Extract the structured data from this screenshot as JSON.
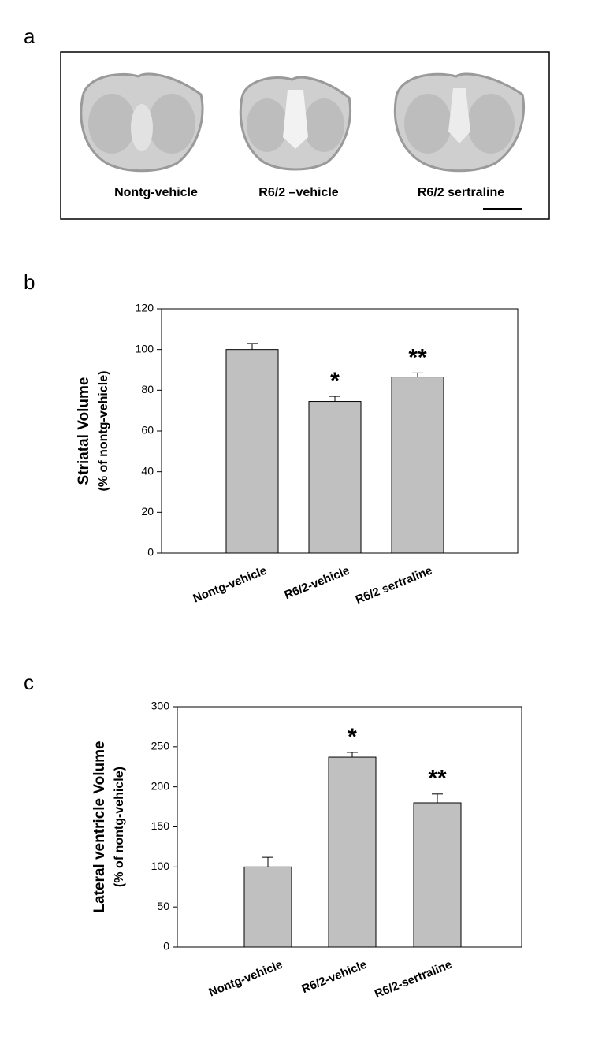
{
  "panel_a": {
    "label": "a",
    "captions": [
      "Nontg-vehicle",
      "R6/2 –vehicle",
      "R6/2 sertraline"
    ]
  },
  "chart_data": [
    {
      "type": "bar",
      "panel": "b",
      "ylabel": [
        "Striatal Volume",
        "(% of nontg-vehicle)"
      ],
      "categories": [
        "Nontg-vehicle",
        "R6/2-vehicle",
        "R6/2 sertraline"
      ],
      "values": [
        100,
        74.5,
        86.5
      ],
      "errors": [
        3,
        2.5,
        2
      ],
      "annotations": [
        null,
        "*",
        "**"
      ],
      "color": "#c0c0c0",
      "ylim": [
        0,
        120
      ],
      "yticks": [
        0,
        20,
        40,
        60,
        80,
        100,
        120
      ]
    },
    {
      "type": "bar",
      "panel": "c",
      "ylabel": [
        "Lateral ventricle Volume",
        "(% of nontg-vehicle)"
      ],
      "categories": [
        "Nontg-vehicle",
        "R6/2-vehicle",
        "R6/2-sertraline"
      ],
      "values": [
        100,
        237,
        180
      ],
      "errors": [
        12,
        6,
        11
      ],
      "annotations": [
        null,
        "*",
        "**"
      ],
      "color": "#c0c0c0",
      "ylim": [
        0,
        300
      ],
      "yticks": [
        0,
        50,
        100,
        150,
        200,
        250,
        300
      ]
    }
  ]
}
